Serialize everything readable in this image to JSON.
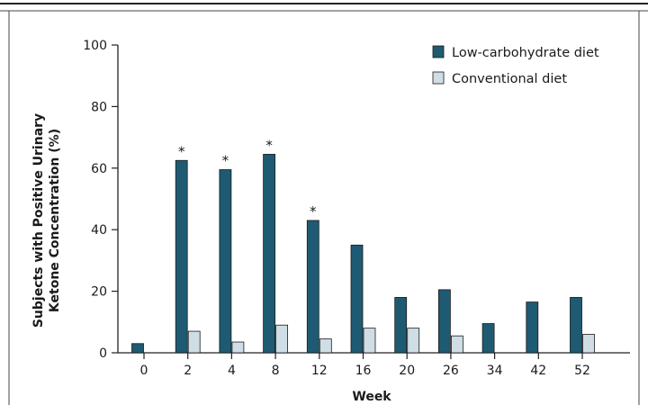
{
  "chart_data": {
    "type": "bar",
    "title": "",
    "xlabel": "Week",
    "ylabel": [
      "Subjects with Positive Urinary",
      "Ketone Concentration (%)"
    ],
    "ylim": [
      0,
      100
    ],
    "yticks": [
      0,
      20,
      40,
      60,
      80,
      100
    ],
    "categories": [
      "0",
      "2",
      "4",
      "8",
      "12",
      "16",
      "20",
      "26",
      "34",
      "42",
      "52"
    ],
    "series": [
      {
        "name": "Low-carbohydrate diet",
        "color": "#1f5a73",
        "values": [
          3,
          62.5,
          59.5,
          64.5,
          43,
          35,
          18,
          20.5,
          9.5,
          16.5,
          18
        ]
      },
      {
        "name": "Conventional diet",
        "color": "#cfdde5",
        "values": [
          null,
          7,
          3.5,
          9,
          4.5,
          8,
          8,
          5.5,
          null,
          null,
          6
        ]
      }
    ],
    "annotations": [
      {
        "category": "2",
        "text": "*"
      },
      {
        "category": "4",
        "text": "*"
      },
      {
        "category": "8",
        "text": "*"
      },
      {
        "category": "12",
        "text": "*"
      }
    ],
    "legend_position": "top-right",
    "grid": false
  }
}
